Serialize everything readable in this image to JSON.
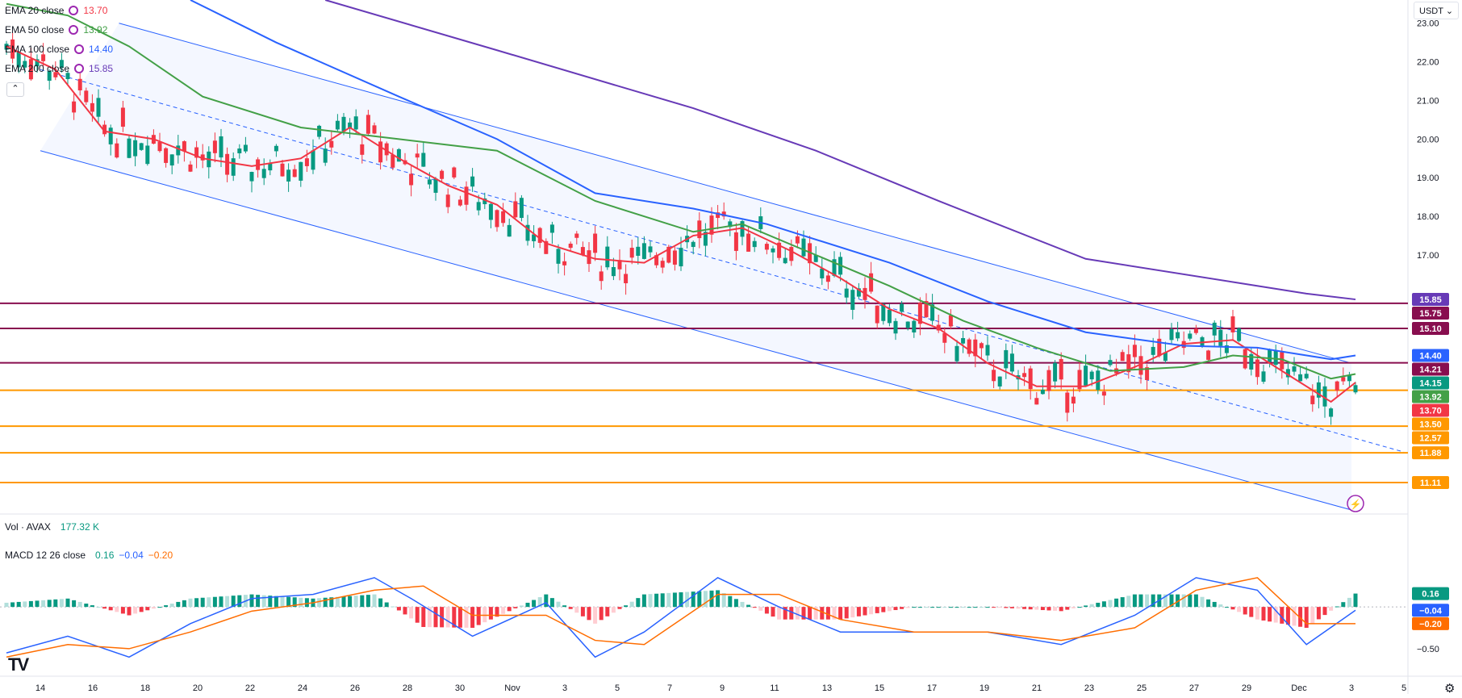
{
  "legend": {
    "ema20": {
      "name": "EMA 20 close",
      "value": "13.70"
    },
    "ema50": {
      "name": "EMA 50 close",
      "value": "13.92"
    },
    "ema100": {
      "name": "EMA 100 close",
      "value": "14.40"
    },
    "ema200": {
      "name": "EMA 200 close",
      "value": "15.85"
    },
    "volume": {
      "name": "Vol · AVAX",
      "value": "177.32 K"
    },
    "macd": {
      "name": "MACD 12 26 close",
      "v1": "0.16",
      "v2": "−0.04",
      "v3": "−0.20"
    }
  },
  "currency": "USDT",
  "collapse_icon": "chevron-up-icon",
  "colors": {
    "ema20": "#f23645",
    "ema50": "#43a047",
    "ema100": "#2962ff",
    "ema200": "#673ab7",
    "resistance": "#880e4f",
    "support": "#ff9800",
    "channel": "#2962ff",
    "up": "#089981",
    "down": "#f23645",
    "macd": "#2962ff",
    "signal": "#ff6d00"
  },
  "chart_data": {
    "type": "line",
    "ylim": [
      10.4,
      23.6
    ],
    "y_ticks": [
      "23.00",
      "22.00",
      "21.00",
      "20.00",
      "19.00",
      "18.00",
      "17.00"
    ],
    "x_ticks": [
      "14",
      "16",
      "18",
      "20",
      "22",
      "24",
      "26",
      "28",
      "30",
      "Nov",
      "3",
      "5",
      "7",
      "9",
      "11",
      "13",
      "15",
      "17",
      "19",
      "21",
      "23",
      "25",
      "27",
      "29",
      "Dec",
      "3",
      "5"
    ],
    "horizontal_levels": [
      {
        "value": 15.75,
        "label": "15.75",
        "kind": "resistance"
      },
      {
        "value": 15.1,
        "label": "15.10",
        "kind": "resistance"
      },
      {
        "value": 14.21,
        "label": "14.21",
        "kind": "resistance"
      },
      {
        "value": 13.5,
        "label": "13.50",
        "kind": "support"
      },
      {
        "value": 12.57,
        "label": "12.57",
        "kind": "support"
      },
      {
        "value": 11.88,
        "label": "11.88",
        "kind": "support"
      },
      {
        "value": 11.11,
        "label": "11.11",
        "kind": "support"
      }
    ],
    "last_value_tags": [
      {
        "label": "15.85",
        "value": 15.85,
        "color": "#673ab7"
      },
      {
        "label": "15.75",
        "value": 15.75,
        "color": "#880e4f"
      },
      {
        "label": "15.10",
        "value": 15.1,
        "color": "#880e4f"
      },
      {
        "label": "14.40",
        "value": 14.4,
        "color": "#2962ff"
      },
      {
        "label": "14.21",
        "value": 14.21,
        "color": "#880e4f"
      },
      {
        "label": "14.15",
        "value": 14.15,
        "color": "#089981"
      },
      {
        "label": "13.92",
        "value": 13.92,
        "color": "#43a047"
      },
      {
        "label": "13.70",
        "value": 13.7,
        "color": "#f23645"
      },
      {
        "label": "13.50",
        "value": 13.5,
        "color": "#ff9800"
      },
      {
        "label": "12.57",
        "value": 12.57,
        "color": "#ff9800"
      },
      {
        "label": "11.88",
        "value": 11.88,
        "color": "#ff9800"
      },
      {
        "label": "11.11",
        "value": 11.11,
        "color": "#ff9800"
      }
    ],
    "channel": {
      "upper": [
        {
          "x": "Oct 17",
          "y": 23.0
        },
        {
          "x": "Dec 3",
          "y": 14.2
        }
      ],
      "middle": [
        {
          "x": "Oct 14",
          "y": 21.8
        },
        {
          "x": "Dec 5",
          "y": 11.9
        }
      ],
      "lower": [
        {
          "x": "Oct 14",
          "y": 19.7
        },
        {
          "x": "Dec 3",
          "y": 10.4
        }
      ]
    },
    "series": [
      {
        "name": "EMA 20 close",
        "color": "#f23645",
        "points": [
          [
            0,
            22.4
          ],
          [
            4,
            21.8
          ],
          [
            8,
            20.2
          ],
          [
            12,
            20.0
          ],
          [
            16,
            19.5
          ],
          [
            20,
            19.3
          ],
          [
            24,
            19.5
          ],
          [
            28,
            20.3
          ],
          [
            32,
            19.5
          ],
          [
            36,
            18.8
          ],
          [
            40,
            18.3
          ],
          [
            44,
            17.3
          ],
          [
            48,
            16.9
          ],
          [
            52,
            16.8
          ],
          [
            56,
            17.5
          ],
          [
            60,
            17.7
          ],
          [
            64,
            17.1
          ],
          [
            68,
            16.4
          ],
          [
            72,
            15.6
          ],
          [
            76,
            15.1
          ],
          [
            80,
            14.2
          ],
          [
            84,
            13.6
          ],
          [
            88,
            13.6
          ],
          [
            92,
            14.1
          ],
          [
            96,
            14.7
          ],
          [
            100,
            14.8
          ],
          [
            104,
            14.0
          ],
          [
            108,
            13.2
          ],
          [
            110,
            13.7
          ]
        ]
      },
      {
        "name": "EMA 50 close",
        "color": "#43a047",
        "points": [
          [
            0,
            23.5
          ],
          [
            5,
            23.2
          ],
          [
            10,
            22.4
          ],
          [
            16,
            21.1
          ],
          [
            24,
            20.3
          ],
          [
            32,
            20.0
          ],
          [
            40,
            19.7
          ],
          [
            48,
            18.4
          ],
          [
            56,
            17.6
          ],
          [
            60,
            17.8
          ],
          [
            66,
            17.0
          ],
          [
            72,
            16.2
          ],
          [
            78,
            15.3
          ],
          [
            84,
            14.6
          ],
          [
            90,
            14.0
          ],
          [
            96,
            14.1
          ],
          [
            100,
            14.4
          ],
          [
            104,
            14.3
          ],
          [
            108,
            13.8
          ],
          [
            110,
            13.92
          ]
        ]
      },
      {
        "name": "EMA 100 close",
        "color": "#2962ff",
        "points": [
          [
            15,
            23.6
          ],
          [
            22,
            22.5
          ],
          [
            32,
            21.1
          ],
          [
            40,
            20.0
          ],
          [
            48,
            18.6
          ],
          [
            56,
            18.2
          ],
          [
            62,
            17.8
          ],
          [
            72,
            16.8
          ],
          [
            80,
            15.8
          ],
          [
            88,
            15.0
          ],
          [
            96,
            14.65
          ],
          [
            102,
            14.6
          ],
          [
            108,
            14.3
          ],
          [
            110,
            14.4
          ]
        ]
      },
      {
        "name": "EMA 200 close",
        "color": "#673ab7",
        "points": [
          [
            26,
            23.6
          ],
          [
            40,
            22.3
          ],
          [
            56,
            20.8
          ],
          [
            66,
            19.7
          ],
          [
            76,
            18.4
          ],
          [
            88,
            16.9
          ],
          [
            100,
            16.3
          ],
          [
            106,
            16.0
          ],
          [
            110,
            15.85
          ]
        ]
      }
    ],
    "macd": {
      "ylim": [
        -0.8,
        0.6
      ],
      "y_ticks": [
        {
          "value": 0.16,
          "label": "0.16",
          "color": "#089981"
        },
        {
          "value": -0.04,
          "label": "−0.04",
          "color": "#2962ff"
        },
        {
          "value": -0.2,
          "label": "−0.20",
          "color": "#ff6d00"
        },
        {
          "value": -0.5,
          "label": "−0.50",
          "color": "none"
        }
      ],
      "macd_line": [
        [
          0,
          -0.55
        ],
        [
          5,
          -0.35
        ],
        [
          10,
          -0.6
        ],
        [
          15,
          -0.2
        ],
        [
          20,
          0.1
        ],
        [
          25,
          0.15
        ],
        [
          30,
          0.35
        ],
        [
          33,
          0.1
        ],
        [
          38,
          -0.35
        ],
        [
          44,
          0.05
        ],
        [
          48,
          -0.6
        ],
        [
          52,
          -0.3
        ],
        [
          58,
          0.35
        ],
        [
          63,
          0.0
        ],
        [
          68,
          -0.3
        ],
        [
          74,
          -0.3
        ],
        [
          80,
          -0.3
        ],
        [
          86,
          -0.45
        ],
        [
          92,
          -0.1
        ],
        [
          97,
          0.35
        ],
        [
          102,
          0.2
        ],
        [
          106,
          -0.45
        ],
        [
          110,
          -0.04
        ]
      ],
      "signal_line": [
        [
          0,
          -0.6
        ],
        [
          5,
          -0.45
        ],
        [
          10,
          -0.5
        ],
        [
          15,
          -0.3
        ],
        [
          20,
          -0.05
        ],
        [
          25,
          0.05
        ],
        [
          30,
          0.2
        ],
        [
          34,
          0.25
        ],
        [
          38,
          -0.1
        ],
        [
          44,
          -0.1
        ],
        [
          48,
          -0.4
        ],
        [
          52,
          -0.45
        ],
        [
          58,
          0.15
        ],
        [
          63,
          0.15
        ],
        [
          68,
          -0.15
        ],
        [
          74,
          -0.3
        ],
        [
          80,
          -0.3
        ],
        [
          86,
          -0.4
        ],
        [
          92,
          -0.25
        ],
        [
          97,
          0.2
        ],
        [
          102,
          0.35
        ],
        [
          106,
          -0.2
        ],
        [
          110,
          -0.2
        ]
      ]
    }
  }
}
